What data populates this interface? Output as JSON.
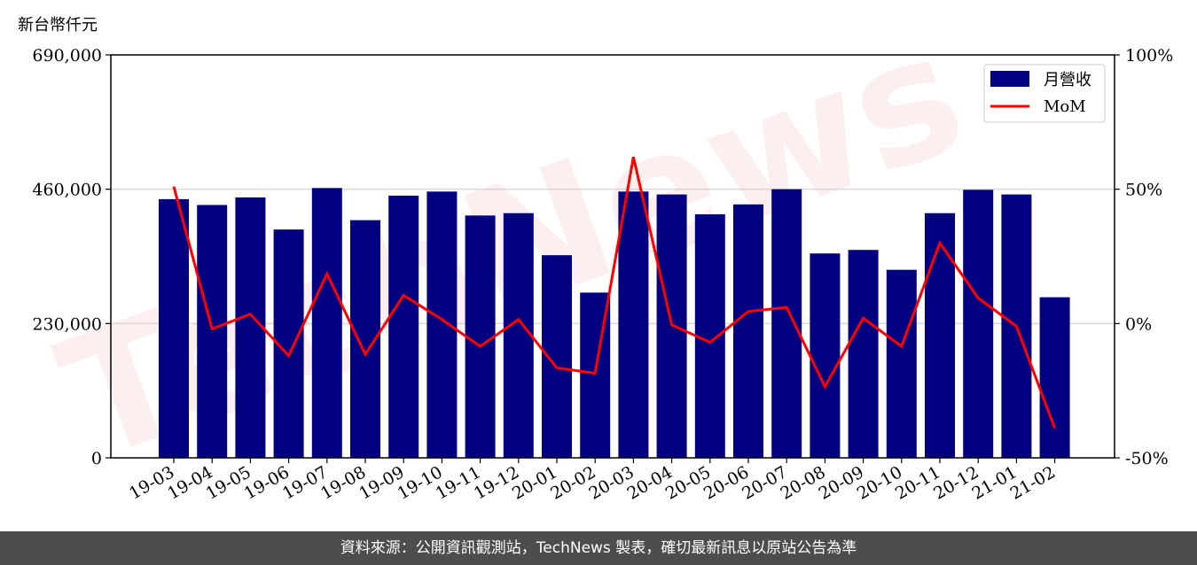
{
  "chart_data": {
    "type": "bar+line",
    "ylabel": "新台幣仟元",
    "categories": [
      "19-03",
      "19-04",
      "19-05",
      "19-06",
      "19-07",
      "19-08",
      "19-09",
      "19-10",
      "19-11",
      "19-12",
      "20-01",
      "20-02",
      "20-03",
      "20-04",
      "20-05",
      "20-06",
      "20-07",
      "20-08",
      "20-09",
      "20-10",
      "20-11",
      "20-12",
      "21-01",
      "21-02"
    ],
    "series": [
      {
        "name": "月營收",
        "axis": "left",
        "type": "bar",
        "color": "#000080",
        "values": [
          443000,
          433000,
          446000,
          391000,
          462000,
          407000,
          449000,
          456000,
          415000,
          419000,
          347000,
          283000,
          456000,
          451000,
          417000,
          434000,
          460000,
          350000,
          356000,
          322000,
          419000,
          459000,
          451000,
          275000
        ]
      },
      {
        "name": "MoM",
        "axis": "right",
        "type": "line",
        "color": "#ff0000",
        "values": [
          51.0,
          -2.0,
          3.5,
          -12.0,
          18.5,
          -11.5,
          10.5,
          1.5,
          -8.5,
          1.5,
          -16.5,
          -18.5,
          62.0,
          -0.5,
          -7.0,
          4.5,
          6.0,
          -23.5,
          2.0,
          -8.5,
          30.0,
          9.5,
          -1.0,
          -39.0
        ]
      }
    ],
    "y_left": {
      "lim": [
        0,
        690000
      ],
      "ticks": [
        "0",
        "230,000",
        "460,000",
        "690,000"
      ],
      "tick_values": [
        0,
        230000,
        460000,
        690000
      ]
    },
    "y_right": {
      "lim": [
        -50,
        100
      ],
      "ticks": [
        "-50%",
        "0%",
        "50%",
        "100%"
      ],
      "tick_values": [
        -50,
        0,
        50,
        100
      ]
    },
    "grid": "horizontal",
    "legend": "top-right",
    "watermark": "TechNews"
  },
  "footer": {
    "text": "資料來源：公開資訊觀測站，TechNews 製表，確切最新訊息以原站公告為準"
  }
}
